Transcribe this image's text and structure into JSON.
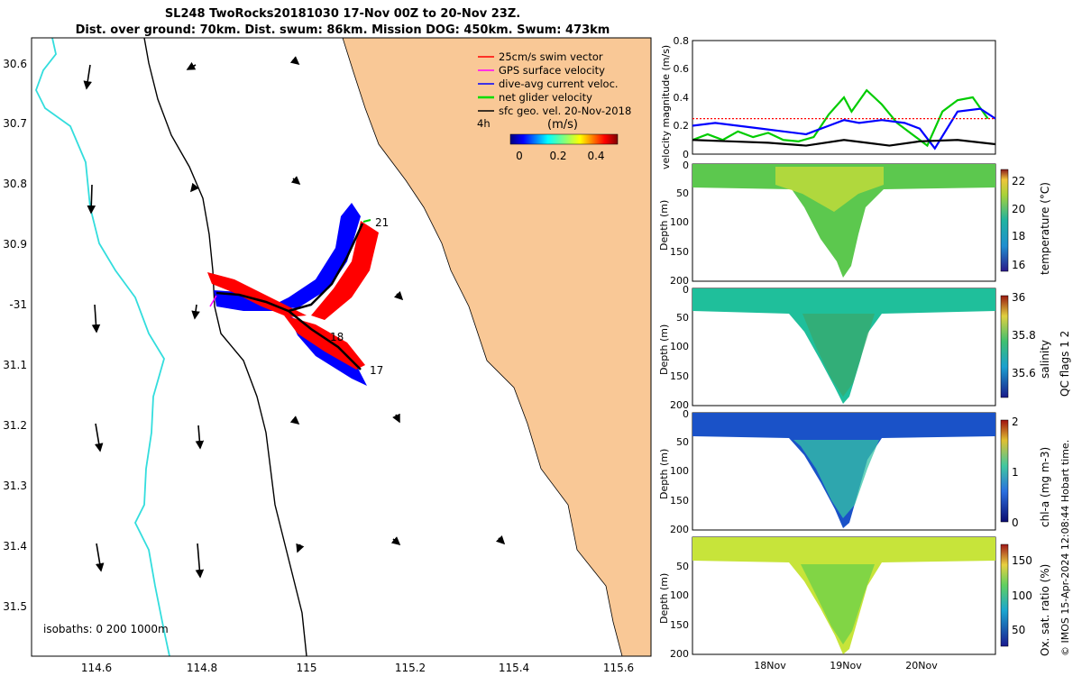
{
  "header": {
    "title_line1": "SL248 TwoRocks20181030 17-Nov 00Z to 20-Nov 23Z.",
    "title_line2": "Dist. over ground: 70km. Dist. swum: 86km. Mission DOG: 450km. Swum: 473km"
  },
  "map": {
    "lat_ticks": [
      "30.6",
      "30.7",
      "30.8",
      "30.9",
      "-31",
      "31.1",
      "31.2",
      "31.3",
      "31.4",
      "31.5"
    ],
    "lon_ticks": [
      "114.6",
      "114.8",
      "115",
      "115.2",
      "115.4",
      "115.6"
    ],
    "legend": [
      {
        "label": "25cm/s swim vector",
        "color": "#ff0000"
      },
      {
        "label": "GPS surface velocity",
        "color": "#ff00ff"
      },
      {
        "label": "dive-avg current veloc.",
        "color": "#0000ff"
      },
      {
        "label": "net glider velocity",
        "color": "#00dd00"
      },
      {
        "label": "sfc geo. vel. 20-Nov-2018",
        "color": "#000000"
      }
    ],
    "time_label": "4h",
    "colorbar": {
      "label": "(m/s)",
      "ticks": [
        "0",
        "0.2",
        "0.4"
      ]
    },
    "isobaths_label": "isobaths: 0   200  1000m",
    "track_labels": [
      "21",
      "18",
      "17"
    ]
  },
  "velocity_panel": {
    "ylabel": "velocity magnitude (m/s)",
    "yticks": [
      "0",
      "0.2",
      "0.4",
      "0.6",
      "0.8"
    ]
  },
  "sections": [
    {
      "name": "temperature",
      "label": "temperature (°C)",
      "ticks": [
        "22",
        "20",
        "18",
        "16"
      ]
    },
    {
      "name": "salinity",
      "label": "salinity",
      "ticks": [
        "36",
        "35.8",
        "35.6"
      ]
    },
    {
      "name": "chla",
      "label": "chl-a (mg m-3)",
      "ticks": [
        "2",
        "1",
        "0"
      ]
    },
    {
      "name": "oxygen",
      "label": "Ox. sat. ratio (%)",
      "ticks": [
        "150",
        "100",
        "50"
      ]
    }
  ],
  "depth_axis": {
    "label": "Depth (m)",
    "ticks": [
      "0",
      "50",
      "100",
      "150",
      "200"
    ]
  },
  "time_axis": {
    "ticks": [
      "18Nov",
      "19Nov",
      "20Nov"
    ]
  },
  "qc_label": "QC flags 1  2",
  "footer": "© IMOS 15-Apr-2024 12:08:44 Hobart time.",
  "chart_data": {
    "type": "line",
    "title": "velocity magnitude",
    "ylabel": "velocity magnitude (m/s)",
    "ylim": [
      0,
      0.8
    ],
    "xlim_days": [
      17,
      21
    ],
    "series": [
      {
        "name": "net glider velocity",
        "color": "#00cc00",
        "x": [
          17.0,
          17.2,
          17.4,
          17.6,
          17.8,
          18.0,
          18.2,
          18.4,
          18.6,
          18.8,
          19.0,
          19.1,
          19.3,
          19.5,
          19.7,
          19.9,
          20.1,
          20.3,
          20.5,
          20.7,
          20.9
        ],
        "y": [
          0.1,
          0.14,
          0.1,
          0.16,
          0.12,
          0.15,
          0.1,
          0.09,
          0.12,
          0.28,
          0.4,
          0.3,
          0.45,
          0.35,
          0.22,
          0.14,
          0.06,
          0.3,
          0.38,
          0.4,
          0.25
        ]
      },
      {
        "name": "dive-avg current veloc.",
        "color": "#0000ff",
        "x": [
          17.0,
          17.3,
          17.6,
          17.9,
          18.2,
          18.5,
          18.8,
          19.0,
          19.2,
          19.5,
          19.8,
          20.0,
          20.2,
          20.5,
          20.8,
          21.0
        ],
        "y": [
          0.2,
          0.22,
          0.2,
          0.18,
          0.16,
          0.14,
          0.2,
          0.24,
          0.22,
          0.24,
          0.22,
          0.18,
          0.04,
          0.3,
          0.32,
          0.25
        ]
      },
      {
        "name": "sfc geo. vel.",
        "color": "#000000",
        "x": [
          17.0,
          17.5,
          18.0,
          18.5,
          19.0,
          19.3,
          19.6,
          20.0,
          20.5,
          21.0
        ],
        "y": [
          0.1,
          0.09,
          0.08,
          0.06,
          0.1,
          0.08,
          0.06,
          0.09,
          0.1,
          0.07
        ]
      },
      {
        "name": "25cm/s reference",
        "color": "#ff0000",
        "x": [
          17.0,
          21.0
        ],
        "y": [
          0.25,
          0.25
        ]
      }
    ]
  }
}
